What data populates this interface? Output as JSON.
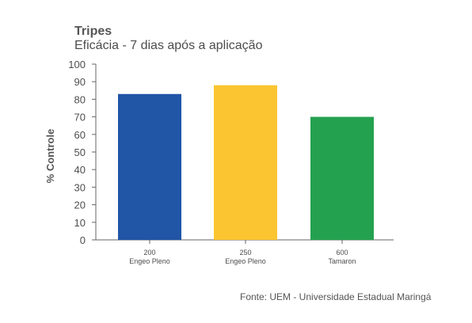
{
  "chart_data": {
    "type": "bar",
    "title": "Tripes",
    "subtitle": "Eficácia - 7 dias após a aplicação",
    "ylabel": "% Controle",
    "xlabel": "",
    "ylim": [
      0,
      100
    ],
    "yticks": [
      0,
      10,
      20,
      30,
      40,
      50,
      60,
      70,
      80,
      90,
      100
    ],
    "grid": false,
    "categories": [
      {
        "dose": "200",
        "product": "Engeo Pleno"
      },
      {
        "dose": "250",
        "product": "Engeo Pleno"
      },
      {
        "dose": "600",
        "product": "Tamaron"
      }
    ],
    "values": [
      83,
      88,
      70
    ],
    "colors": [
      "#2155a6",
      "#fbc531",
      "#24a14f"
    ]
  },
  "source": "Fonte: UEM -  Universidade Estadual Maringá"
}
